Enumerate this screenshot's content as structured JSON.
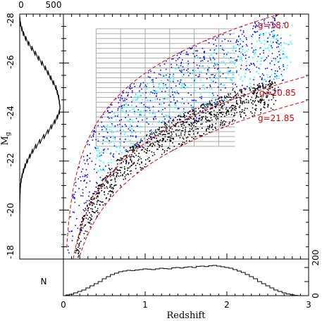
{
  "chart_data": {
    "type": "scatter",
    "xlabel": "Redshift",
    "ylabel": "M",
    "ylabel_sub": "g",
    "xlim": [
      0,
      3
    ],
    "ylim": [
      -18,
      -28
    ],
    "x_ticks": [
      "0",
      "1",
      "2",
      "3"
    ],
    "y_ticks": [
      "-18",
      "-20",
      "-22",
      "-24",
      "-26",
      "-28"
    ],
    "grid": {
      "color": "#aaaaaa",
      "z_range": [
        0.4,
        2.1
      ],
      "m_range": [
        -22.6,
        -27.4
      ],
      "z_step": 0.1,
      "m_step": 0.2
    },
    "colors": {
      "blue": "#0000ff",
      "cyan": "#00ffff",
      "black": "#000000",
      "curve": "#e00000",
      "grid": "#aaaaaa"
    },
    "series": [
      {
        "color": "#0000ff",
        "description": "blue points (bright)"
      },
      {
        "color": "#00ffff",
        "description": "cyan points"
      },
      {
        "color": "#000000",
        "description": "black points (faint)"
      }
    ],
    "magnitude_limits": [
      {
        "label": "g=18.0",
        "g": 18.0
      },
      {
        "label": "g=20.85",
        "g": 20.85
      },
      {
        "label": "g=21.85",
        "g": 21.85
      }
    ],
    "side_histogram": {
      "axis_label": "",
      "ticks": [
        "0",
        "500"
      ],
      "bins_M": [
        -27.8,
        -27.6,
        -27.4,
        -27.2,
        -27.0,
        -26.8,
        -26.6,
        -26.4,
        -26.2,
        -26.0,
        -25.8,
        -25.6,
        -25.4,
        -25.2,
        -25.0,
        -24.8,
        -24.6,
        -24.4,
        -24.2,
        -24.0,
        -23.8,
        -23.6,
        -23.4,
        -23.2,
        -23.0,
        -22.8,
        -22.6,
        -22.4,
        -22.2,
        -22.0,
        -21.8,
        -21.6,
        -21.4,
        -21.2,
        -21.0,
        -20.8,
        -20.6,
        -20.4,
        -20.2,
        -20.0,
        -19.8
      ],
      "counts": [
        3,
        10,
        30,
        55,
        90,
        130,
        180,
        230,
        280,
        330,
        380,
        420,
        460,
        500,
        540,
        560,
        580,
        590,
        600,
        590,
        560,
        520,
        470,
        420,
        360,
        300,
        240,
        190,
        150,
        110,
        80,
        55,
        35,
        20,
        12,
        8,
        5,
        3,
        2,
        1,
        0
      ]
    },
    "bottom_histogram": {
      "axis_label": "N",
      "ticks": [
        "0",
        "200"
      ],
      "z_bins": [
        0.05,
        0.1,
        0.15,
        0.2,
        0.25,
        0.3,
        0.35,
        0.4,
        0.45,
        0.5,
        0.55,
        0.6,
        0.65,
        0.7,
        0.75,
        0.8,
        0.85,
        0.9,
        0.95,
        1.0,
        1.05,
        1.1,
        1.15,
        1.2,
        1.25,
        1.3,
        1.35,
        1.4,
        1.45,
        1.5,
        1.55,
        1.6,
        1.65,
        1.7,
        1.75,
        1.8,
        1.85,
        1.9,
        1.95,
        2.0,
        2.05,
        2.1,
        2.15,
        2.2,
        2.25,
        2.3,
        2.35,
        2.4,
        2.45,
        2.5,
        2.55,
        2.6,
        2.65,
        2.7,
        2.75,
        2.8,
        2.85
      ],
      "counts": [
        5,
        10,
        20,
        30,
        40,
        55,
        70,
        85,
        100,
        120,
        135,
        150,
        160,
        170,
        175,
        180,
        178,
        182,
        185,
        190,
        188,
        185,
        190,
        195,
        192,
        190,
        198,
        200,
        196,
        202,
        205,
        200,
        208,
        210,
        206,
        212,
        215,
        210,
        205,
        200,
        195,
        185,
        175,
        165,
        150,
        135,
        120,
        100,
        85,
        70,
        55,
        40,
        30,
        20,
        12,
        6,
        2
      ]
    }
  }
}
